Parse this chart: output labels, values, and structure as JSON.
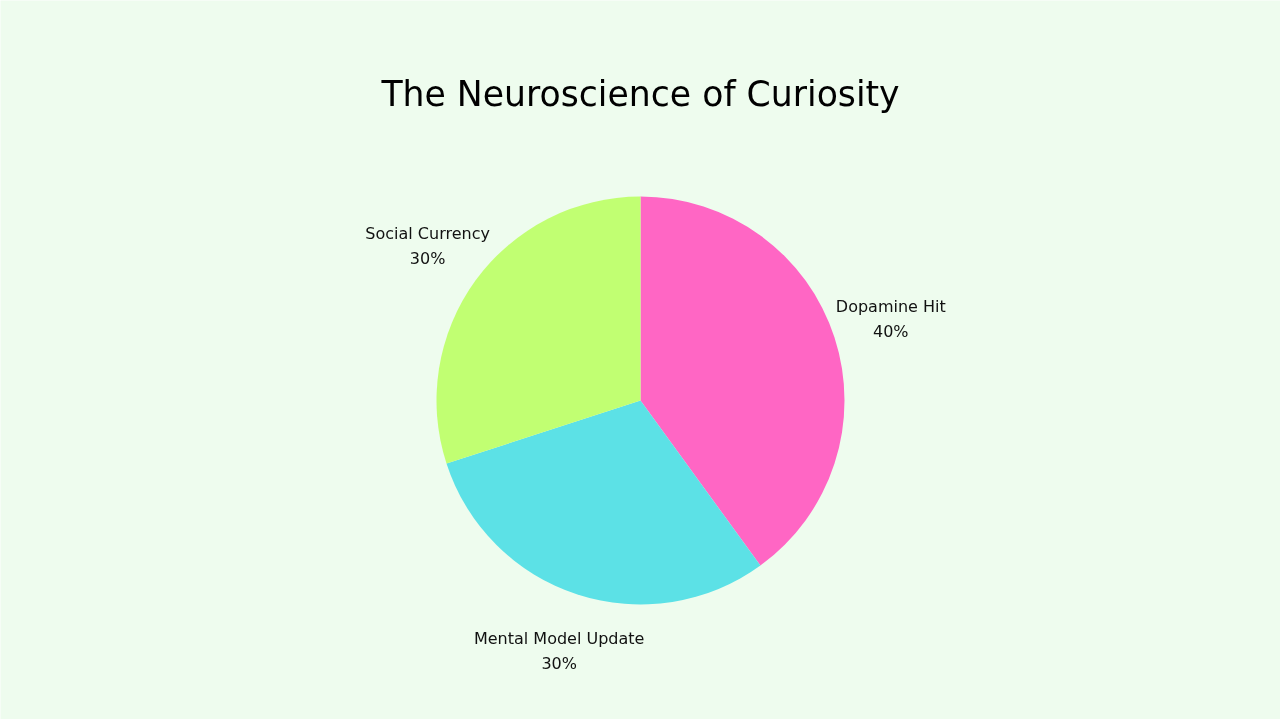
{
  "chart_data": {
    "type": "pie",
    "title": "The Neuroscience of Curiosity",
    "categories": [
      "Dopamine Hit",
      "Mental Model Update",
      "Social Currency"
    ],
    "values": [
      40,
      30,
      30
    ],
    "value_labels": [
      "40%",
      "30%",
      "30%"
    ],
    "colors": [
      "#ff66c4",
      "#5ce1e6",
      "#c1ff72"
    ]
  }
}
